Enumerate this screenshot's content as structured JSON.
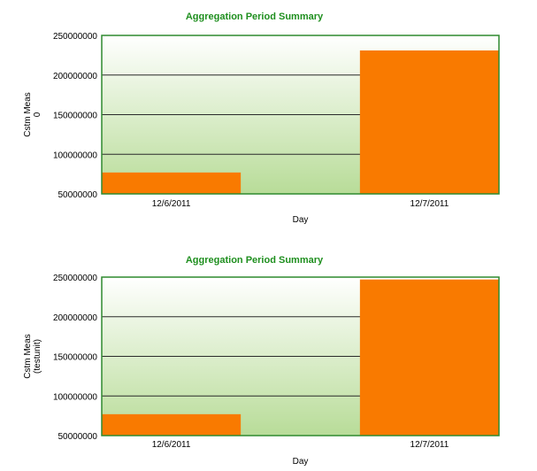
{
  "chart_data": [
    {
      "type": "bar",
      "title": "Aggregation Period Summary",
      "xlabel": "Day",
      "ylabel": [
        "Cstm Meas",
        "0"
      ],
      "categories": [
        "12/6/2011",
        "12/7/2011"
      ],
      "values": [
        77000000,
        231000000
      ],
      "ylim": [
        50000000,
        250000000
      ],
      "yticks": [
        "250000000",
        "200000000",
        "150000000",
        "100000000",
        "50000000"
      ],
      "grid": true,
      "colors": {
        "bar": "#f97a00",
        "border": "#2f8a2f",
        "bg_top": "#ffffff",
        "bg_bottom": "#b8dc98"
      }
    },
    {
      "type": "bar",
      "title": "Aggregation Period Summary",
      "xlabel": "Day",
      "ylabel": [
        "Cstm Meas",
        "(testunit)"
      ],
      "categories": [
        "12/6/2011",
        "12/7/2011"
      ],
      "values": [
        77000000,
        247000000
      ],
      "ylim": [
        50000000,
        250000000
      ],
      "yticks": [
        "250000000",
        "200000000",
        "150000000",
        "100000000",
        "50000000"
      ],
      "grid": true,
      "colors": {
        "bar": "#f97a00",
        "border": "#2f8a2f",
        "bg_top": "#ffffff",
        "bg_bottom": "#b8dc98"
      }
    }
  ]
}
